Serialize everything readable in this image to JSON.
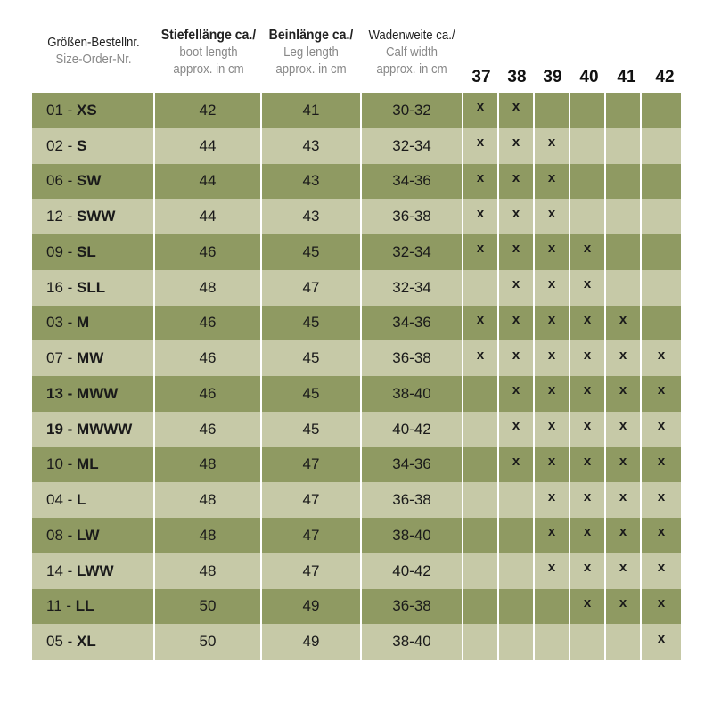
{
  "headers": {
    "size_order": {
      "de": "Größen-Bestellnr.",
      "en": "Size-Order-Nr."
    },
    "boot_length": {
      "de": "Stiefellänge ca./",
      "en1": "boot length",
      "en2": "approx. in cm"
    },
    "leg_length": {
      "de": "Beinlänge ca./",
      "en1": "Leg length",
      "en2": "approx. in cm"
    },
    "calf_width": {
      "de": "Wadenweite ca./",
      "en1": "Calf width",
      "en2": "approx. in cm"
    },
    "shoe_sizes": [
      "37",
      "38",
      "39",
      "40",
      "41",
      "42"
    ]
  },
  "mark": "x",
  "colors": {
    "dark_row": "#8f9a62",
    "light_row": "#c6c9a7"
  },
  "rows": [
    {
      "num": "01 - ",
      "code": "XS",
      "boot": "42",
      "leg": "41",
      "calf": "30-32",
      "sizes": [
        "37",
        "38"
      ]
    },
    {
      "num": "02 - ",
      "code": "S",
      "boot": "44",
      "leg": "43",
      "calf": "32-34",
      "sizes": [
        "37",
        "38",
        "39"
      ]
    },
    {
      "num": "06 - ",
      "code": "SW",
      "boot": "44",
      "leg": "43",
      "calf": "34-36",
      "sizes": [
        "37",
        "38",
        "39"
      ]
    },
    {
      "num": "12 - ",
      "code": "SWW",
      "boot": "44",
      "leg": "43",
      "calf": "36-38",
      "sizes": [
        "37",
        "38",
        "39"
      ]
    },
    {
      "num": "09 - ",
      "code": "SL",
      "boot": "46",
      "leg": "45",
      "calf": "32-34",
      "sizes": [
        "37",
        "38",
        "39",
        "40"
      ]
    },
    {
      "num": "16 - ",
      "code": "SLL",
      "boot": "48",
      "leg": "47",
      "calf": "32-34",
      "sizes": [
        "38",
        "39",
        "40"
      ]
    },
    {
      "num": "03 - ",
      "code": "M",
      "boot": "46",
      "leg": "45",
      "calf": "34-36",
      "sizes": [
        "37",
        "38",
        "39",
        "40",
        "41"
      ]
    },
    {
      "num": "07 - ",
      "code": "MW",
      "boot": "46",
      "leg": "45",
      "calf": "36-38",
      "sizes": [
        "37",
        "38",
        "39",
        "40",
        "41",
        "42"
      ]
    },
    {
      "num": "13 - ",
      "code": "MWW",
      "boot": "46",
      "leg": "45",
      "calf": "38-40",
      "sizes": [
        "38",
        "39",
        "40",
        "41",
        "42"
      ],
      "bold_num": true
    },
    {
      "num": "19 - ",
      "code": "MWWW",
      "boot": "46",
      "leg": "45",
      "calf": "40-42",
      "sizes": [
        "38",
        "39",
        "40",
        "41",
        "42"
      ],
      "bold_num": true
    },
    {
      "num": "10 - ",
      "code": "ML",
      "boot": "48",
      "leg": "47",
      "calf": "34-36",
      "sizes": [
        "38",
        "39",
        "40",
        "41",
        "42"
      ]
    },
    {
      "num": "04 - ",
      "code": "L",
      "boot": "48",
      "leg": "47",
      "calf": "36-38",
      "sizes": [
        "39",
        "40",
        "41",
        "42"
      ]
    },
    {
      "num": "08 - ",
      "code": "LW",
      "boot": "48",
      "leg": "47",
      "calf": "38-40",
      "sizes": [
        "39",
        "40",
        "41",
        "42"
      ]
    },
    {
      "num": "14 - ",
      "code": "LWW",
      "boot": "48",
      "leg": "47",
      "calf": "40-42",
      "sizes": [
        "39",
        "40",
        "41",
        "42"
      ]
    },
    {
      "num": "11 - ",
      "code": "LL",
      "boot": "50",
      "leg": "49",
      "calf": "36-38",
      "sizes": [
        "40",
        "41",
        "42"
      ]
    },
    {
      "num": "05 - ",
      "code": "XL",
      "boot": "50",
      "leg": "49",
      "calf": "38-40",
      "sizes": [
        "42"
      ]
    }
  ]
}
